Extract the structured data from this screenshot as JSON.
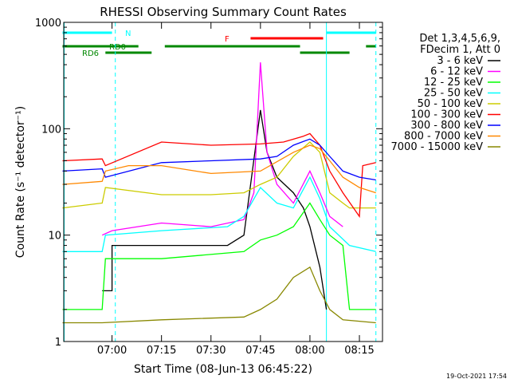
{
  "chart_data": {
    "type": "line",
    "title": "RHESSI Observing Summary Count Rates",
    "xlabel": "Start Time (08-Jun-13 06:45:22)",
    "ylabel": "Count Rate (s⁻¹ detector⁻¹)",
    "y_scale": "log",
    "ylim": [
      1,
      1000
    ],
    "xlim": [
      "06:45:22",
      "08:22"
    ],
    "x_ticks": [
      "07:00",
      "07:15",
      "07:30",
      "07:45",
      "08:00",
      "08:15"
    ],
    "y_ticks": [
      "1",
      "10",
      "100",
      "1000"
    ],
    "grid": false,
    "legend_position": "right",
    "legend_header": [
      "Det 1,3,4,5,6,9,",
      "FDecim 1, Att 0"
    ],
    "footer_date": "19-Oct-2021 17:54",
    "flag_labels": {
      "night": "N",
      "rd0": "RD0",
      "rd6": "RD6",
      "flare": "F"
    },
    "flags": {
      "night": [
        [
          "06:45",
          "07:00"
        ],
        [
          "08:05",
          "08:20"
        ]
      ],
      "rd0": [
        [
          "06:45",
          "07:08"
        ],
        [
          "07:16",
          "07:57"
        ],
        [
          "08:17",
          "08:20"
        ]
      ],
      "rd6": [
        [
          "06:58",
          "07:12"
        ],
        [
          "07:57",
          "08:12"
        ]
      ],
      "flare": [
        [
          "07:42",
          "08:04"
        ]
      ]
    },
    "vlines_solid": [
      "06:45:30",
      "08:05"
    ],
    "vlines_dashed": [
      "07:01",
      "08:20"
    ],
    "series": [
      {
        "name": "3 - 6 keV",
        "color": "#000000",
        "points": [
          [
            "06:57",
            3
          ],
          [
            "07:00",
            3
          ],
          [
            "07:00",
            8
          ],
          [
            "07:15",
            8
          ],
          [
            "07:35",
            8
          ],
          [
            "07:40",
            10
          ],
          [
            "07:45",
            150
          ],
          [
            "07:47",
            60
          ],
          [
            "07:50",
            35
          ],
          [
            "07:55",
            25
          ],
          [
            "07:58",
            18
          ],
          [
            "08:00",
            12
          ],
          [
            "08:03",
            5
          ],
          [
            "08:05",
            2
          ]
        ]
      },
      {
        "name": "6 - 12 keV",
        "color": "#ff00ff",
        "points": [
          [
            "06:57",
            10
          ],
          [
            "07:00",
            11
          ],
          [
            "07:15",
            13
          ],
          [
            "07:30",
            12
          ],
          [
            "07:40",
            14
          ],
          [
            "07:43",
            25
          ],
          [
            "07:45",
            420
          ],
          [
            "07:47",
            60
          ],
          [
            "07:50",
            30
          ],
          [
            "07:55",
            20
          ],
          [
            "08:00",
            40
          ],
          [
            "08:03",
            25
          ],
          [
            "08:06",
            15
          ],
          [
            "08:10",
            12
          ]
        ]
      },
      {
        "name": "12 - 25 keV",
        "color": "#00ff00",
        "points": [
          [
            "06:45",
            2
          ],
          [
            "06:57",
            2
          ],
          [
            "06:58",
            6
          ],
          [
            "07:15",
            6
          ],
          [
            "07:40",
            7
          ],
          [
            "07:45",
            9
          ],
          [
            "07:50",
            10
          ],
          [
            "07:55",
            12
          ],
          [
            "08:00",
            20
          ],
          [
            "08:03",
            14
          ],
          [
            "08:06",
            10
          ],
          [
            "08:10",
            8
          ],
          [
            "08:12",
            2
          ],
          [
            "08:20",
            2
          ]
        ]
      },
      {
        "name": "25 - 50 keV",
        "color": "#00ffff",
        "points": [
          [
            "06:45",
            7
          ],
          [
            "06:57",
            7
          ],
          [
            "06:58",
            10
          ],
          [
            "07:15",
            11
          ],
          [
            "07:35",
            12
          ],
          [
            "07:40",
            15
          ],
          [
            "07:45",
            28
          ],
          [
            "07:50",
            20
          ],
          [
            "07:55",
            18
          ],
          [
            "08:00",
            35
          ],
          [
            "08:03",
            22
          ],
          [
            "08:06",
            12
          ],
          [
            "08:12",
            8
          ],
          [
            "08:20",
            7
          ]
        ]
      },
      {
        "name": "50 - 100 keV",
        "color": "#cccc00",
        "points": [
          [
            "06:45",
            18
          ],
          [
            "06:57",
            20
          ],
          [
            "06:58",
            28
          ],
          [
            "07:15",
            24
          ],
          [
            "07:30",
            24
          ],
          [
            "07:40",
            25
          ],
          [
            "07:45",
            30
          ],
          [
            "07:50",
            35
          ],
          [
            "07:55",
            55
          ],
          [
            "08:00",
            75
          ],
          [
            "08:03",
            60
          ],
          [
            "08:06",
            25
          ],
          [
            "08:10",
            20
          ],
          [
            "08:12",
            18
          ],
          [
            "08:20",
            18
          ]
        ]
      },
      {
        "name": "100 - 300 keV",
        "color": "#ff0000",
        "points": [
          [
            "06:45",
            50
          ],
          [
            "06:57",
            52
          ],
          [
            "06:58",
            45
          ],
          [
            "07:15",
            75
          ],
          [
            "07:30",
            70
          ],
          [
            "07:45",
            72
          ],
          [
            "07:52",
            75
          ],
          [
            "07:58",
            85
          ],
          [
            "08:00",
            90
          ],
          [
            "08:03",
            70
          ],
          [
            "08:06",
            40
          ],
          [
            "08:10",
            25
          ],
          [
            "08:15",
            15
          ],
          [
            "08:16",
            45
          ],
          [
            "08:20",
            48
          ]
        ]
      },
      {
        "name": "300 - 800 keV",
        "color": "#0000ff",
        "points": [
          [
            "06:45",
            40
          ],
          [
            "06:57",
            42
          ],
          [
            "06:58",
            35
          ],
          [
            "07:15",
            48
          ],
          [
            "07:30",
            50
          ],
          [
            "07:45",
            52
          ],
          [
            "07:50",
            55
          ],
          [
            "07:55",
            70
          ],
          [
            "08:00",
            80
          ],
          [
            "08:03",
            70
          ],
          [
            "08:06",
            55
          ],
          [
            "08:10",
            40
          ],
          [
            "08:15",
            35
          ],
          [
            "08:20",
            33
          ]
        ]
      },
      {
        "name": "800 - 7000 keV",
        "color": "#ff8800",
        "points": [
          [
            "06:45",
            30
          ],
          [
            "06:57",
            32
          ],
          [
            "06:58",
            40
          ],
          [
            "07:05",
            45
          ],
          [
            "07:15",
            45
          ],
          [
            "07:30",
            38
          ],
          [
            "07:45",
            40
          ],
          [
            "07:55",
            60
          ],
          [
            "08:00",
            70
          ],
          [
            "08:03",
            65
          ],
          [
            "08:06",
            50
          ],
          [
            "08:10",
            35
          ],
          [
            "08:15",
            28
          ],
          [
            "08:20",
            25
          ]
        ]
      },
      {
        "name": "7000 - 15000 keV",
        "color": "#888800",
        "points": [
          [
            "06:45",
            1.5
          ],
          [
            "06:57",
            1.5
          ],
          [
            "07:15",
            1.6
          ],
          [
            "07:40",
            1.7
          ],
          [
            "07:45",
            2
          ],
          [
            "07:50",
            2.5
          ],
          [
            "07:55",
            4
          ],
          [
            "08:00",
            5
          ],
          [
            "08:03",
            3
          ],
          [
            "08:06",
            2
          ],
          [
            "08:10",
            1.6
          ],
          [
            "08:20",
            1.5
          ]
        ]
      }
    ]
  }
}
